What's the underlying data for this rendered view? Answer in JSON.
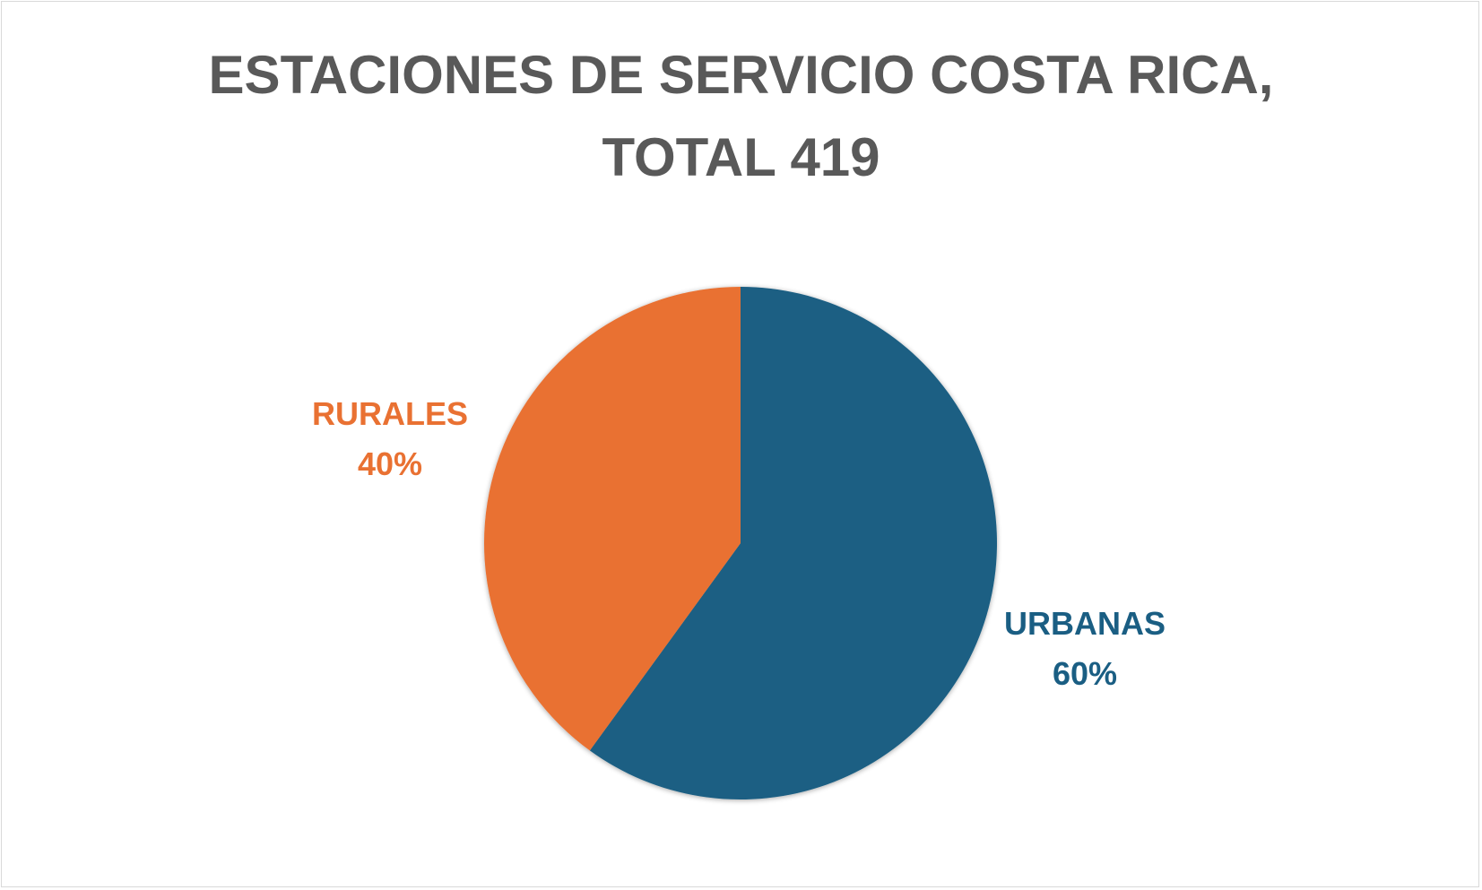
{
  "chart_data": {
    "type": "pie",
    "title": "ESTACIONES DE SERVICIO COSTA RICA, TOTAL 419",
    "title_lines": [
      "ESTACIONES DE SERVICIO COSTA RICA,",
      "TOTAL 419"
    ],
    "categories": [
      "URBANAS",
      "RURALES"
    ],
    "values": [
      60,
      40
    ],
    "value_labels": [
      "60%",
      "40%"
    ],
    "colors": [
      "#1a5e83",
      "#e97132"
    ],
    "legend": "none"
  }
}
